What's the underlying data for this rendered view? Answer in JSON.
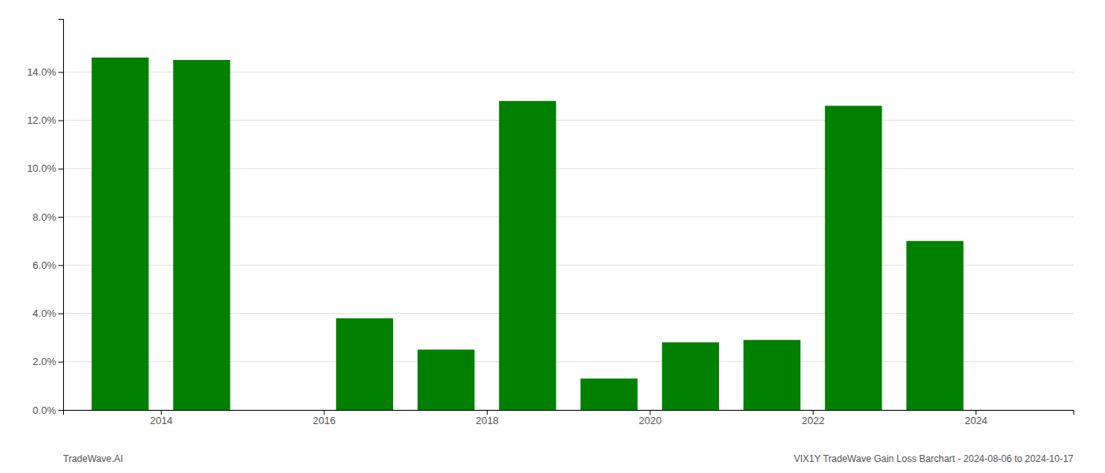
{
  "chart_data": {
    "type": "bar",
    "x": [
      2013.5,
      2014.5,
      2016.5,
      2017.5,
      2018.5,
      2019.5,
      2020.5,
      2021.5,
      2022.5,
      2023.5
    ],
    "values": [
      0.146,
      0.145,
      0.038,
      0.025,
      0.128,
      0.013,
      0.028,
      0.029,
      0.126,
      0.07
    ],
    "color": "#008000",
    "xlim": [
      2012.8,
      2025.2
    ],
    "xticks": [
      2014,
      2016,
      2018,
      2020,
      2022,
      2024
    ],
    "ylim": [
      0,
      0.162
    ],
    "yticks": [
      {
        "value": 0.0,
        "label": "0.0%"
      },
      {
        "value": 0.02,
        "label": "2.0%"
      },
      {
        "value": 0.04,
        "label": "4.0%"
      },
      {
        "value": 0.06,
        "label": "6.0%"
      },
      {
        "value": 0.08,
        "label": "8.0%"
      },
      {
        "value": 0.1,
        "label": "10.0%"
      },
      {
        "value": 0.12,
        "label": "12.0%"
      },
      {
        "value": 0.14,
        "label": "14.0%"
      }
    ],
    "grid": true,
    "annotations": [
      "TradeWave.AI",
      "VIX1Y TradeWave Gain Loss Barchart - 2024-08-06 to 2024-10-17"
    ]
  }
}
